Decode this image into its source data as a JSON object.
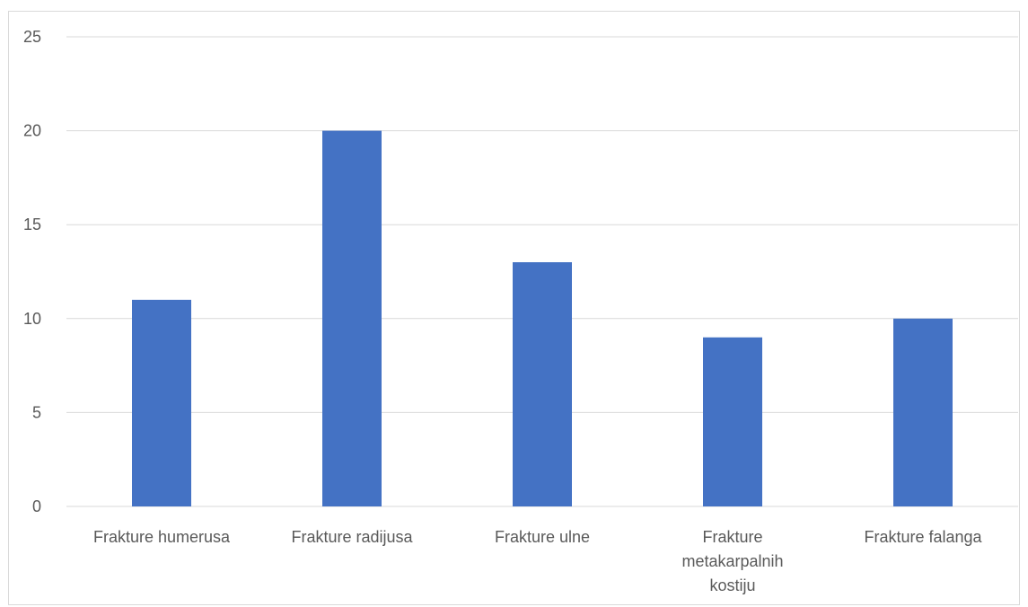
{
  "chart_data": {
    "type": "bar",
    "title": "",
    "xlabel": "",
    "ylabel": "",
    "categories": [
      [
        "Frakture humerusa"
      ],
      [
        "Frakture radijusa"
      ],
      [
        "Frakture ulne"
      ],
      [
        "Frakture",
        "metakarpalnih",
        "kostiju"
      ],
      [
        "Frakture falanga"
      ]
    ],
    "values": [
      11,
      20,
      13,
      9,
      10
    ],
    "ylim": [
      0,
      25
    ],
    "yticks": [
      0,
      5,
      10,
      15,
      20,
      25
    ],
    "grid": true,
    "legend": "none",
    "bar_color": "#4472c4"
  }
}
